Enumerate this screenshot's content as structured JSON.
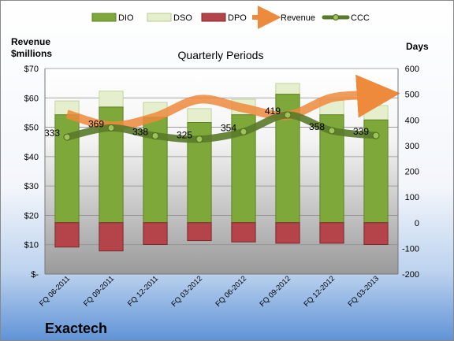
{
  "chart_data": {
    "type": "bar",
    "title": "Quarterly Periods",
    "company": "Exactech",
    "left_axis_label_line1": "Revenue",
    "left_axis_label_line2": "$millions",
    "right_axis_label": "Days",
    "categories": [
      "FQ 06-2011",
      "FQ 09-2011",
      "FQ 12-2011",
      "FQ 03-2012",
      "FQ 06-2012",
      "FQ 09-2012",
      "FQ 12-2012",
      "FQ 03-2013"
    ],
    "left_ticks": [
      "$-",
      "$10",
      "$20",
      "$30",
      "$40",
      "$50",
      "$60",
      "$70"
    ],
    "right_ticks": [
      "-200",
      "-100",
      "0",
      "100",
      "200",
      "300",
      "400",
      "500",
      "600"
    ],
    "ylim_right": [
      -200,
      600
    ],
    "series": [
      {
        "name": "DIO",
        "color": "#7fa83a",
        "values": [
          420,
          450,
          410,
          390,
          420,
          500,
          420,
          400
        ]
      },
      {
        "name": "DSO",
        "color": "#e6efcd",
        "values": [
          54,
          62,
          58,
          54,
          60,
          42,
          58,
          56
        ]
      },
      {
        "name": "DPO",
        "color": "#b5444a",
        "values": [
          -95,
          -110,
          -85,
          -70,
          -75,
          -80,
          -80,
          -85
        ]
      },
      {
        "name": "Revenue",
        "color": "#ed8a3c",
        "values": [
          54.5,
          50.5,
          53.5,
          59.5,
          56.5,
          54,
          60,
          61
        ]
      },
      {
        "name": "CCC",
        "color": "#5a7a2a",
        "values": [
          333,
          369,
          338,
          325,
          354,
          419,
          358,
          339
        ]
      }
    ]
  }
}
